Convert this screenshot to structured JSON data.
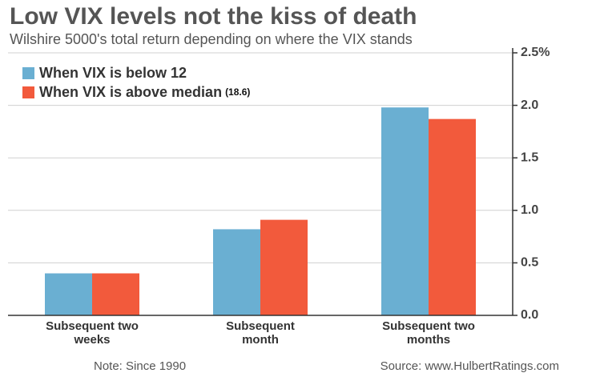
{
  "chart_data": {
    "type": "bar",
    "title": "Low VIX levels not the kiss of death",
    "subtitle": "Wilshire 5000's total return depending on where the VIX stands",
    "categories": [
      "Subsequent two weeks",
      "Subsequent month",
      "Subsequent two months"
    ],
    "series": [
      {
        "name": "When VIX is below 12",
        "color": "#6aafd2",
        "values": [
          0.4,
          0.82,
          1.98
        ]
      },
      {
        "name": "When VIX is above median",
        "color": "#f25a3c",
        "values": [
          0.4,
          0.91,
          1.87
        ]
      }
    ],
    "legend_annotation": "(18.6)",
    "ylim": [
      0,
      2.5
    ],
    "yticks": [
      {
        "value": 0,
        "label": "0.0"
      },
      0.5,
      {
        "value": 1,
        "label": "1.0"
      },
      1.5,
      {
        "value": 2,
        "label": "2.0"
      },
      {
        "value": 2.5,
        "label": "2.5%"
      }
    ],
    "grid": true,
    "note": "Note: Since 1990",
    "source": "Source: www.HulbertRatings.com"
  }
}
